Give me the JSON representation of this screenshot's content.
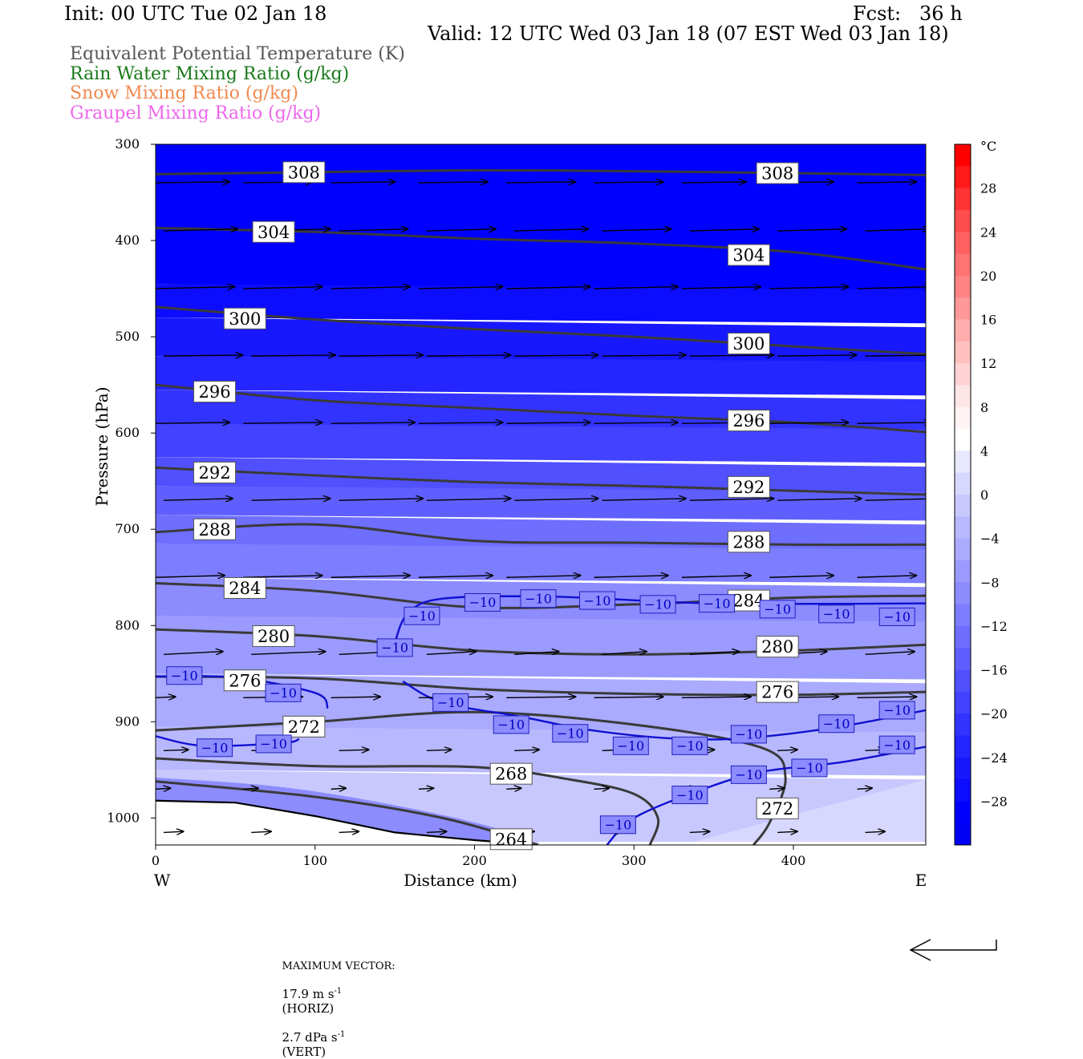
{
  "header": {
    "init": "Init: 00 UTC Tue 02 Jan 18",
    "fcst": "Fcst:   36 h",
    "valid": "Valid: 12 UTC Wed 03 Jan 18 (07 EST Wed 03 Jan 18)",
    "legend": [
      {
        "text": "Equivalent Potential Temperature (K)",
        "color": "#555555"
      },
      {
        "text": "Rain Water Mixing Ratio (g/kg)",
        "color": "#1a7a1a"
      },
      {
        "text": "Snow Mixing Ratio (g/kg)",
        "color": "#f08a50"
      },
      {
        "text": "Graupel Mixing Ratio (g/kg)",
        "color": "#ee66ee"
      }
    ]
  },
  "footer": {
    "max_label": "MAXIMUM VECTOR:",
    "horiz": "17.9 m s",
    "horiz_sup": "-1",
    "horiz_unit": "(HORIZ)",
    "vert": "2.7 dPa s",
    "vert_sup": "-1",
    "vert_unit": "(VERT)"
  },
  "chart_data": {
    "type": "cross-section contour",
    "xlabel": "Distance (km)",
    "ylabel": "Pressure (hPa)",
    "x_end_labels": {
      "left": "W",
      "right": "E"
    },
    "x_ticks": [
      0,
      100,
      200,
      300,
      400
    ],
    "y_ticks": [
      300,
      400,
      500,
      600,
      700,
      800,
      900,
      1000
    ],
    "xlim": [
      0,
      483
    ],
    "ylim": [
      1028,
      300
    ],
    "colorbar": {
      "unit": "°C",
      "tick_labels": [
        "28",
        "24",
        "20",
        "16",
        "12",
        "8",
        "4",
        "0",
        "−4",
        "−8",
        "−12",
        "−16",
        "−20",
        "−24",
        "−28"
      ],
      "levels": [
        32,
        30,
        28,
        26,
        24,
        22,
        20,
        18,
        16,
        14,
        12,
        10,
        8,
        6,
        4,
        2,
        0,
        -2,
        -4,
        -6,
        -8,
        -10,
        -12,
        -14,
        -16,
        -18,
        -20,
        -22,
        -24,
        -26,
        -28,
        -30,
        -32
      ],
      "colors": [
        "#ff0000",
        "#ff1a1a",
        "#ff3333",
        "#ff4d4d",
        "#ff6060",
        "#ff7373",
        "#ff8585",
        "#ff9999",
        "#ffadad",
        "#ffc0c0",
        "#ffd3d3",
        "#ffe6e6",
        "#fff3f3",
        "#ffffff",
        "#e8e8ff",
        "#d8d8ff",
        "#c8c8ff",
        "#b8b8ff",
        "#aaaaff",
        "#9b9bff",
        "#8c8cff",
        "#7d7dff",
        "#6e6eff",
        "#5f5fff",
        "#5050ff",
        "#4242ff",
        "#3333ff",
        "#2525ff",
        "#1818ff",
        "#0c0cff",
        "#0000ff",
        "#0000f5"
      ]
    },
    "theta_e": [
      {
        "label": "308",
        "points": [
          [
            0,
            331
          ],
          [
            100,
            329
          ],
          [
            200,
            327
          ],
          [
            300,
            328
          ],
          [
            400,
            330
          ],
          [
            483,
            332
          ]
        ],
        "labels_at": [
          [
            93,
            329
          ],
          [
            390,
            330
          ]
        ]
      },
      {
        "label": "304",
        "points": [
          [
            0,
            387
          ],
          [
            100,
            391
          ],
          [
            200,
            398
          ],
          [
            300,
            403
          ],
          [
            400,
            412
          ],
          [
            483,
            430
          ]
        ],
        "labels_at": [
          [
            74,
            391
          ],
          [
            372,
            415
          ]
        ]
      },
      {
        "label": "300",
        "points": [
          [
            0,
            469
          ],
          [
            100,
            482
          ],
          [
            200,
            492
          ],
          [
            300,
            500
          ],
          [
            400,
            510
          ],
          [
            483,
            518
          ]
        ],
        "labels_at": [
          [
            56,
            481
          ],
          [
            372,
            507
          ]
        ]
      },
      {
        "label": "296",
        "points": [
          [
            0,
            550
          ],
          [
            100,
            566
          ],
          [
            200,
            574
          ],
          [
            300,
            582
          ],
          [
            400,
            589
          ],
          [
            483,
            599
          ]
        ],
        "labels_at": [
          [
            37,
            557
          ],
          [
            372,
            587
          ]
        ]
      },
      {
        "label": "292",
        "points": [
          [
            0,
            636
          ],
          [
            100,
            644
          ],
          [
            200,
            651
          ],
          [
            300,
            655
          ],
          [
            400,
            660
          ],
          [
            483,
            664
          ]
        ],
        "labels_at": [
          [
            37,
            641
          ],
          [
            372,
            656
          ]
        ]
      },
      {
        "label": "288",
        "points": [
          [
            0,
            703
          ],
          [
            100,
            695
          ],
          [
            200,
            712
          ],
          [
            300,
            714
          ],
          [
            400,
            716
          ],
          [
            483,
            716
          ]
        ],
        "labels_at": [
          [
            37,
            700
          ],
          [
            372,
            713
          ]
        ]
      },
      {
        "label": "284",
        "points": [
          [
            0,
            756
          ],
          [
            100,
            764
          ],
          [
            200,
            781
          ],
          [
            300,
            778
          ],
          [
            400,
            771
          ],
          [
            483,
            769
          ]
        ],
        "labels_at": [
          [
            56,
            761
          ],
          [
            372,
            774
          ]
        ]
      },
      {
        "label": "280",
        "points": [
          [
            0,
            804
          ],
          [
            100,
            811
          ],
          [
            200,
            826
          ],
          [
            300,
            830
          ],
          [
            400,
            826
          ],
          [
            483,
            820
          ]
        ],
        "labels_at": [
          [
            74,
            811
          ],
          [
            390,
            822
          ]
        ]
      },
      {
        "label": "276",
        "points": [
          [
            0,
            853
          ],
          [
            100,
            855
          ],
          [
            200,
            866
          ],
          [
            300,
            871
          ],
          [
            400,
            872
          ],
          [
            483,
            869
          ]
        ],
        "labels_at": [
          [
            56,
            857
          ],
          [
            390,
            869
          ]
        ]
      },
      {
        "label": "272",
        "points": [
          [
            0,
            909
          ],
          [
            100,
            900
          ],
          [
            200,
            890
          ],
          [
            300,
            903
          ],
          [
            380,
            927
          ],
          [
            395,
            958
          ],
          [
            385,
            1005
          ],
          [
            375,
            1028
          ]
        ],
        "labels_at": [
          [
            93,
            905
          ],
          [
            390,
            990
          ]
        ]
      },
      {
        "label": "268",
        "points": [
          [
            0,
            938
          ],
          [
            100,
            946
          ],
          [
            200,
            947
          ],
          [
            260,
            960
          ],
          [
            300,
            975
          ],
          [
            315,
            1000
          ],
          [
            310,
            1028
          ]
        ],
        "labels_at": [
          [
            223,
            954
          ]
        ]
      },
      {
        "label": "264",
        "points": [
          [
            0,
            962
          ],
          [
            100,
            978
          ],
          [
            180,
            1000
          ],
          [
            240,
            1028
          ]
        ],
        "labels_at": [
          [
            223,
            1022
          ]
        ]
      }
    ],
    "isotherm_minus10": [
      {
        "label": "−10",
        "points": [
          [
            0,
            853
          ],
          [
            50,
            854
          ],
          [
            100,
            870
          ],
          [
            108,
            886
          ]
        ],
        "labels_at": [
          [
            18,
            852
          ],
          [
            80,
            870
          ]
        ]
      },
      {
        "label": "−10",
        "points": [
          [
            0,
            915
          ],
          [
            30,
            925
          ],
          [
            80,
            922
          ],
          [
            90,
            918
          ]
        ],
        "labels_at": [
          [
            37,
            927
          ],
          [
            74,
            923
          ]
        ]
      },
      {
        "label": "−10",
        "points": [
          [
            150,
            818
          ],
          [
            158,
            788
          ],
          [
            180,
            772
          ],
          [
            250,
            770
          ],
          [
            350,
            777
          ],
          [
            483,
            777
          ]
        ],
        "labels_at": [
          [
            167,
            790
          ],
          [
            150,
            823
          ],
          [
            205,
            776
          ],
          [
            240,
            772
          ],
          [
            277,
            774
          ],
          [
            315,
            778
          ],
          [
            352,
            777
          ],
          [
            390,
            783
          ],
          [
            427,
            788
          ],
          [
            465,
            791
          ]
        ]
      },
      {
        "label": "−10",
        "points": [
          [
            155,
            858
          ],
          [
            180,
            880
          ],
          [
            230,
            895
          ],
          [
            270,
            908
          ],
          [
            320,
            917
          ],
          [
            360,
            918
          ],
          [
            400,
            912
          ],
          [
            440,
            902
          ],
          [
            483,
            888
          ]
        ],
        "labels_at": [
          [
            185,
            880
          ],
          [
            223,
            903
          ],
          [
            260,
            912
          ],
          [
            298,
            925
          ],
          [
            335,
            925
          ],
          [
            372,
            913
          ],
          [
            427,
            902
          ],
          [
            465,
            888
          ]
        ]
      },
      {
        "label": "−10",
        "points": [
          [
            283,
            1028
          ],
          [
            300,
            1000
          ],
          [
            340,
            972
          ],
          [
            380,
            952
          ],
          [
            430,
            942
          ],
          [
            483,
            926
          ]
        ],
        "labels_at": [
          [
            290,
            1007
          ],
          [
            335,
            976
          ],
          [
            372,
            955
          ],
          [
            410,
            948
          ],
          [
            465,
            924
          ]
        ]
      }
    ],
    "wind_vectors": {
      "rows_hPa": [
        340,
        390,
        450,
        520,
        590,
        670,
        750,
        830,
        875,
        930,
        970,
        1015
      ],
      "columns_km": [
        0,
        55,
        110,
        165,
        220,
        275,
        330,
        385,
        440,
        483
      ],
      "u_m_s": [
        [
          15,
          14,
          13,
          14,
          14,
          14,
          13,
          13,
          12,
          0
        ],
        [
          15,
          16,
          14,
          14,
          15,
          14,
          14,
          14,
          13,
          0
        ],
        [
          16,
          16,
          16,
          17,
          17,
          17,
          16,
          16,
          15,
          0
        ],
        [
          16,
          17,
          17,
          17,
          17,
          17,
          17,
          16,
          16,
          0
        ],
        [
          15,
          16,
          17,
          17,
          17,
          17,
          17,
          16,
          15,
          0
        ],
        [
          14,
          16,
          17,
          17,
          17,
          17,
          17,
          17,
          16,
          0
        ],
        [
          14,
          16,
          16,
          15,
          15,
          15,
          14,
          13,
          12,
          0
        ],
        [
          12,
          15,
          12,
          10,
          9,
          9,
          10,
          10,
          10,
          0
        ],
        [
          4,
          12,
          10,
          15,
          14,
          14,
          14,
          14,
          12,
          0
        ],
        [
          5,
          5,
          6,
          5,
          5,
          4,
          5,
          4,
          4,
          0
        ],
        [
          3,
          3,
          3,
          3,
          3,
          3,
          3,
          3,
          3,
          0
        ],
        [
          4,
          4,
          4,
          4,
          4,
          4,
          4,
          4,
          4,
          0
        ]
      ],
      "w_dPa_s_per_row": [
        0.1,
        0.2,
        0.2,
        0.1,
        0.1,
        0.2,
        0.2,
        0.3,
        0.1,
        0.1,
        0.1,
        0.1
      ]
    },
    "terrain_surface_hPa": [
      [
        0,
        982
      ],
      [
        50,
        984
      ],
      [
        100,
        998
      ],
      [
        150,
        1015
      ],
      [
        200,
        1023
      ],
      [
        240,
        1028
      ]
    ]
  }
}
